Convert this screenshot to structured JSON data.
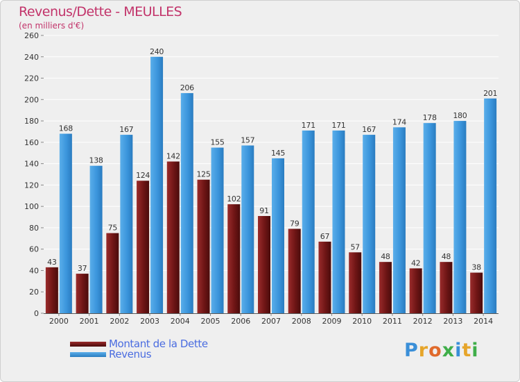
{
  "page": {
    "title": "Revenus/Dette - MEULLES",
    "subtitle": "(en milliers d'€)",
    "logo": "Proxiti"
  },
  "colors": {
    "debt": "#7a1a1a",
    "revenue": "#3b95dc",
    "grid": "#ffffff",
    "background": "#efefef",
    "title": "#c2336a"
  },
  "chart_data": {
    "type": "bar",
    "title": "Revenus/Dette - MEULLES",
    "subtitle": "(en milliers d'€)",
    "categories": [
      "2000",
      "2001",
      "2002",
      "2003",
      "2004",
      "2005",
      "2006",
      "2007",
      "2008",
      "2009",
      "2010",
      "2011",
      "2012",
      "2013",
      "2014"
    ],
    "series": [
      {
        "name": "Montant de la Dette",
        "values": [
          43,
          37,
          75,
          124,
          142,
          125,
          102,
          91,
          79,
          67,
          57,
          48,
          42,
          48,
          38
        ]
      },
      {
        "name": "Revenus",
        "values": [
          168,
          138,
          167,
          240,
          206,
          155,
          157,
          145,
          171,
          171,
          167,
          174,
          178,
          180,
          201
        ]
      }
    ],
    "ylim": [
      0,
      260
    ],
    "yticks": [
      0,
      20,
      40,
      60,
      80,
      100,
      120,
      140,
      160,
      180,
      200,
      220,
      240,
      260
    ],
    "grid": true,
    "legend": "bottom-left"
  }
}
